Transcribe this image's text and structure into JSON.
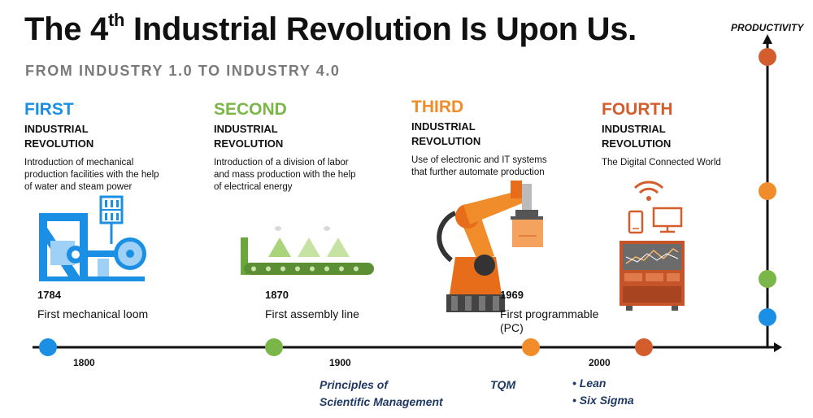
{
  "header": {
    "title_main": "The 4",
    "title_sup": "th",
    "title_rest": " Industrial Revolution Is Upon Us.",
    "subtitle": "FROM INDUSTRY 1.0 TO INDUSTRY 4.0"
  },
  "colors": {
    "first": "#1a8fe3",
    "second": "#7ab648",
    "third": "#f08c2a",
    "fourth": "#d45d2e",
    "axis": "#111111",
    "notes": "#1f3864"
  },
  "eras": [
    {
      "name": "FIRST",
      "sub_line1": "INDUSTRIAL",
      "sub_line2": "REVOLUTION",
      "desc": "Introduction of mechanical production facilities with the help of water and steam power",
      "year": "1784",
      "milestone": "First mechanical loom",
      "icon": "loom-icon"
    },
    {
      "name": "SECOND",
      "sub_line1": "INDUSTRIAL",
      "sub_line2": "REVOLUTION",
      "desc": "Introduction of a division of labor and mass production with the help of electrical energy",
      "year": "1870",
      "milestone": "First assembly line",
      "icon": "assembly-line-icon"
    },
    {
      "name": "THIRD",
      "sub_line1": "INDUSTRIAL",
      "sub_line2": "REVOLUTION",
      "desc": "Use of electronic and IT systems that further automate production",
      "year": "1969",
      "milestone": "First programmable (PC)",
      "icon": "robot-arm-icon"
    },
    {
      "name": "FOURTH",
      "sub_line1": "INDUSTRIAL",
      "sub_line2": "REVOLUTION",
      "desc": "The Digital Connected World",
      "icon": "connected-devices-icon"
    }
  ],
  "timeline": {
    "ticks": [
      "1800",
      "1900",
      "2000"
    ],
    "y_axis_label": "PRODUCTIVITY"
  },
  "notes": {
    "principles_line1": "Principles of",
    "principles_line2": "Scientific Management",
    "tqm": "TQM",
    "lean": "• Lean",
    "six_sigma": "• Six Sigma"
  }
}
